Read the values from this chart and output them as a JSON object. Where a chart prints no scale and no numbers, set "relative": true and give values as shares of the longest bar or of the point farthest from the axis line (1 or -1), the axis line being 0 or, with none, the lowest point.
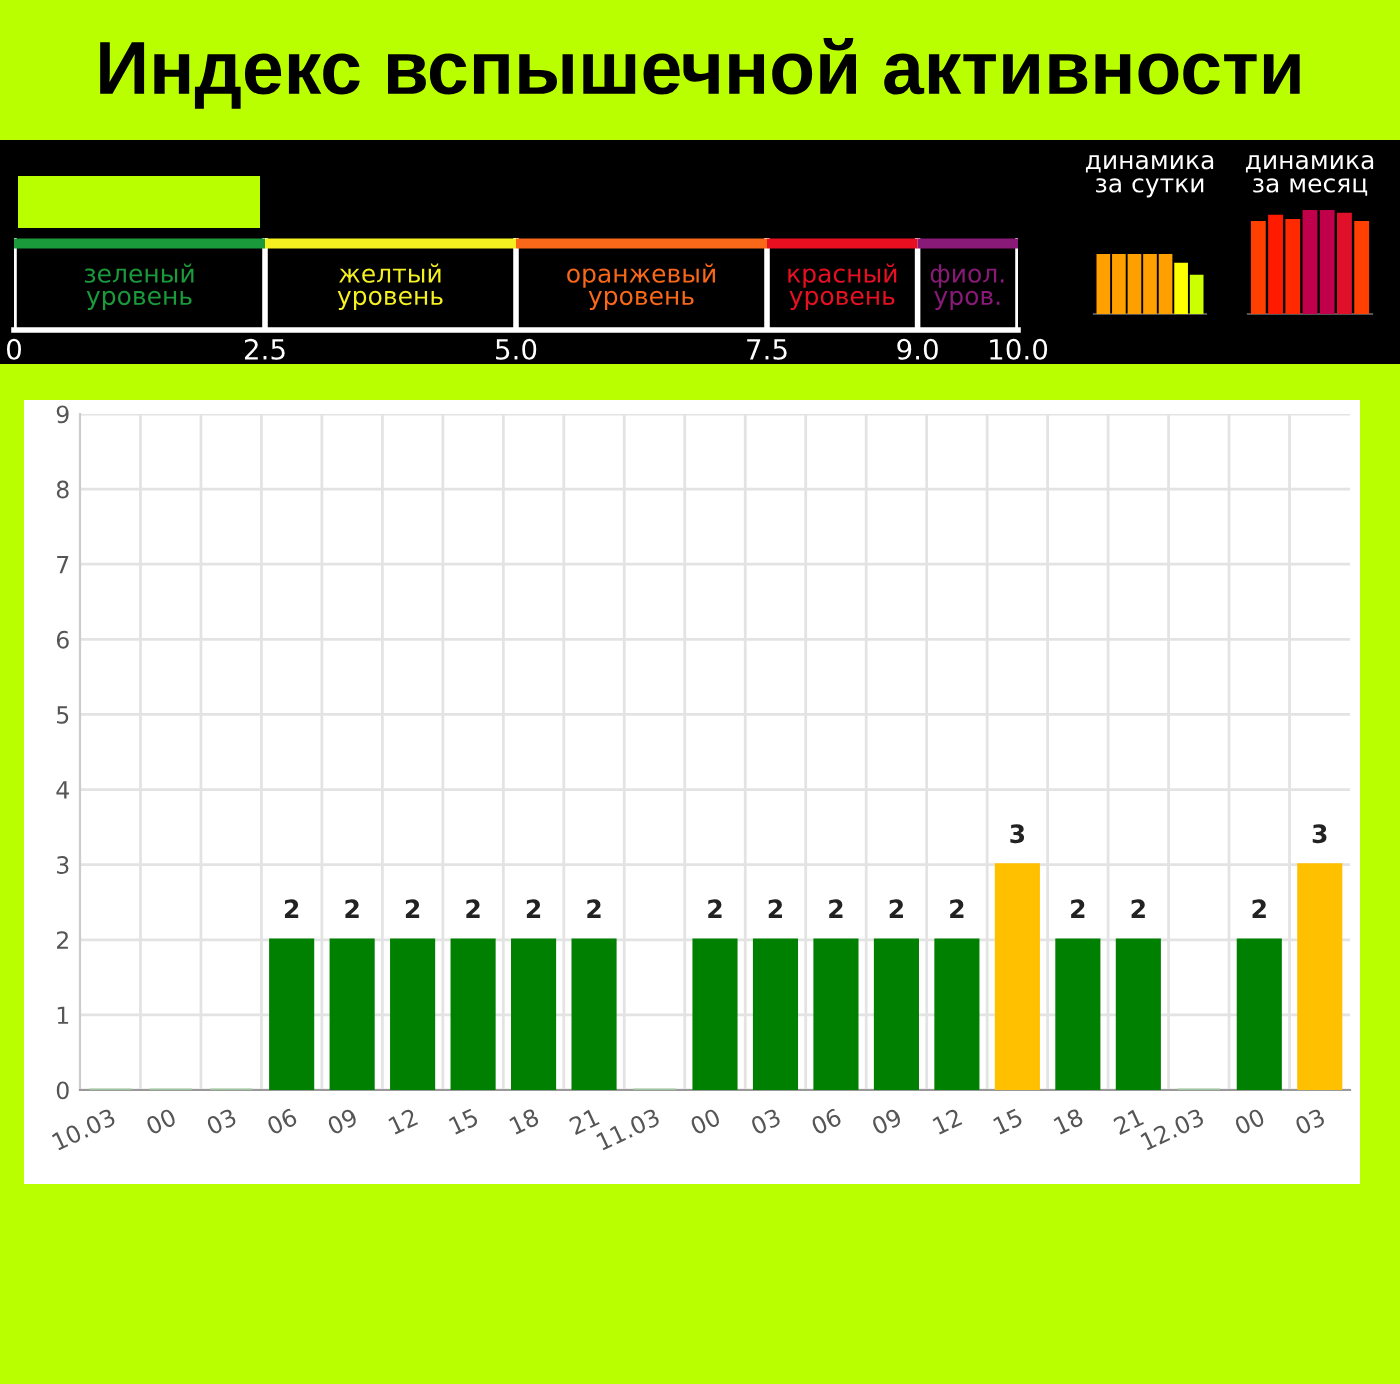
{
  "chart_data": [
    {
      "type": "bar",
      "title": "Индекс вспышечной активности",
      "orientation": "horizontal",
      "stacked": true,
      "categories": [
        null
      ],
      "grid": "x",
      "xlim": [
        0,
        10
      ],
      "xticks": [
        {
          "value": 0,
          "label": "0"
        },
        {
          "value": 2.5,
          "label": "2.5"
        },
        {
          "value": 5,
          "label": "5.0"
        },
        {
          "value": 7.5,
          "label": "7.5"
        },
        {
          "value": 9,
          "label": "9.0"
        },
        {
          "value": 10,
          "label": "10.0"
        }
      ],
      "series": [
        {
          "name": "зеленый\nуровень",
          "color": "#1a9a3a",
          "values": [
            2.5
          ]
        },
        {
          "name": "желтый\nуровень",
          "color": "#f5f020",
          "values": [
            2.5
          ]
        },
        {
          "name": "оранжевый\nуровень",
          "color": "#f86818",
          "values": [
            2.5
          ]
        },
        {
          "name": "красный\nуровень",
          "color": "#e81020",
          "values": [
            1.5
          ]
        },
        {
          "name": "фиол.\nуров.",
          "color": "#8a1a78",
          "values": [
            1
          ]
        }
      ]
    },
    {
      "type": "bar",
      "title": "динамика\nза сутки",
      "relative": true,
      "categories": [
        null,
        null,
        null,
        null,
        null,
        null,
        null
      ],
      "values": [
        1,
        1,
        1,
        1,
        1,
        0.83,
        0.63
      ],
      "colors": [
        "#ffa000",
        "#ffa000",
        "#ffa000",
        "#ffa000",
        "#ffa000",
        "#ffff00",
        "#ccff00"
      ]
    },
    {
      "type": "bar",
      "title": "динамика\nза месяц",
      "relative": true,
      "categories": [
        null,
        null,
        null,
        null,
        null,
        null,
        null
      ],
      "values": [
        0.88,
        0.94,
        0.9,
        1,
        1,
        0.96,
        0.88
      ],
      "colors": [
        "#ff4000",
        "#ff1a00",
        "#ff2a00",
        "#c0004a",
        "#c0004a",
        "#e0102a",
        "#ff4000"
      ]
    },
    {
      "type": "bar",
      "categories": [
        "10.03",
        "00",
        "03",
        "06",
        "09",
        "12",
        "15",
        "18",
        "21",
        "11.03",
        "00",
        "03",
        "06",
        "09",
        "12",
        "15",
        "18",
        "21",
        "12.03",
        "00",
        "03"
      ],
      "values": [
        0,
        0,
        0,
        2,
        2,
        2,
        2,
        2,
        2,
        0,
        2,
        2,
        2,
        2,
        2,
        3,
        2,
        2,
        0,
        2,
        3
      ],
      "value_labels": [
        null,
        null,
        null,
        "2",
        "2",
        "2",
        "2",
        "2",
        "2",
        null,
        "2",
        "2",
        "2",
        "2",
        "2",
        "3",
        "2",
        "2",
        null,
        "2",
        "3"
      ],
      "colors": [
        "#a0c8a0",
        "#a0c8a0",
        "#a0c8a0",
        "#008000",
        "#008000",
        "#008000",
        "#008000",
        "#008000",
        "#008000",
        "#a0c8a0",
        "#008000",
        "#008000",
        "#008000",
        "#008000",
        "#008000",
        "#ffc000",
        "#008000",
        "#008000",
        "#a0c8a0",
        "#008000",
        "#ffc000"
      ],
      "ylim": [
        0,
        9
      ],
      "yticks": [
        0,
        1,
        2,
        3,
        4,
        5,
        6,
        7,
        8,
        9
      ],
      "grid": true
    }
  ]
}
